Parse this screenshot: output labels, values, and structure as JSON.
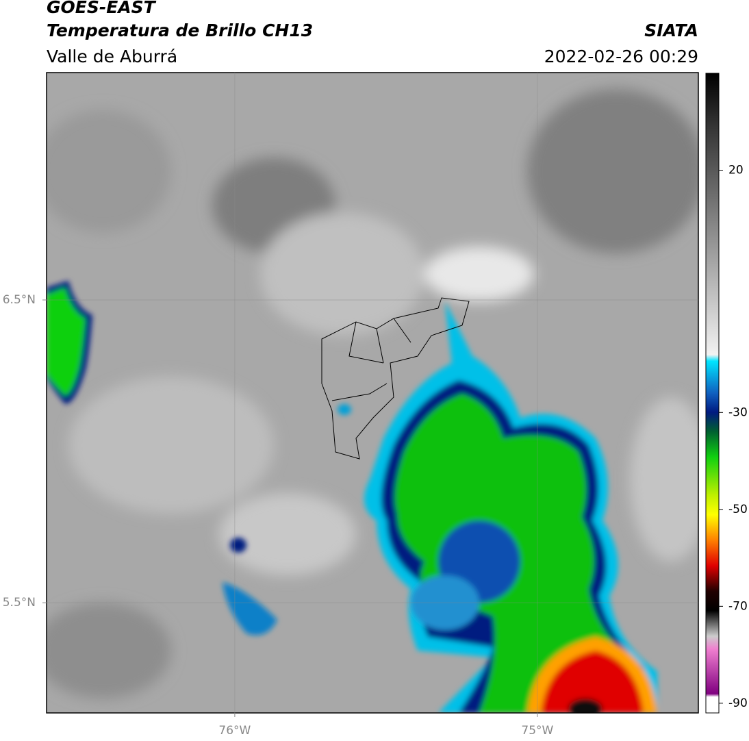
{
  "chart_data": {
    "type": "map",
    "title": [
      "GOES-EAST",
      "Temperatura de Brillo CH13"
    ],
    "subtitle": "Valle de Aburrá",
    "source": "SIATA",
    "timestamp": "2022-02-26 00:29",
    "xlim": [
      -76.622,
      -74.468
    ],
    "ylim": [
      5.136,
      7.251
    ],
    "xticks": [
      {
        "value": -76,
        "label": "76°W"
      },
      {
        "value": -75,
        "label": "75°W"
      }
    ],
    "yticks": [
      {
        "value": 5.5,
        "label": "5.5°N"
      },
      {
        "value": 6.5,
        "label": "6.5°N"
      }
    ],
    "grid": true,
    "colorbar": {
      "lim": [
        -92,
        40
      ],
      "ticks": [
        20,
        -30,
        -50,
        -70,
        -90
      ]
    }
  }
}
